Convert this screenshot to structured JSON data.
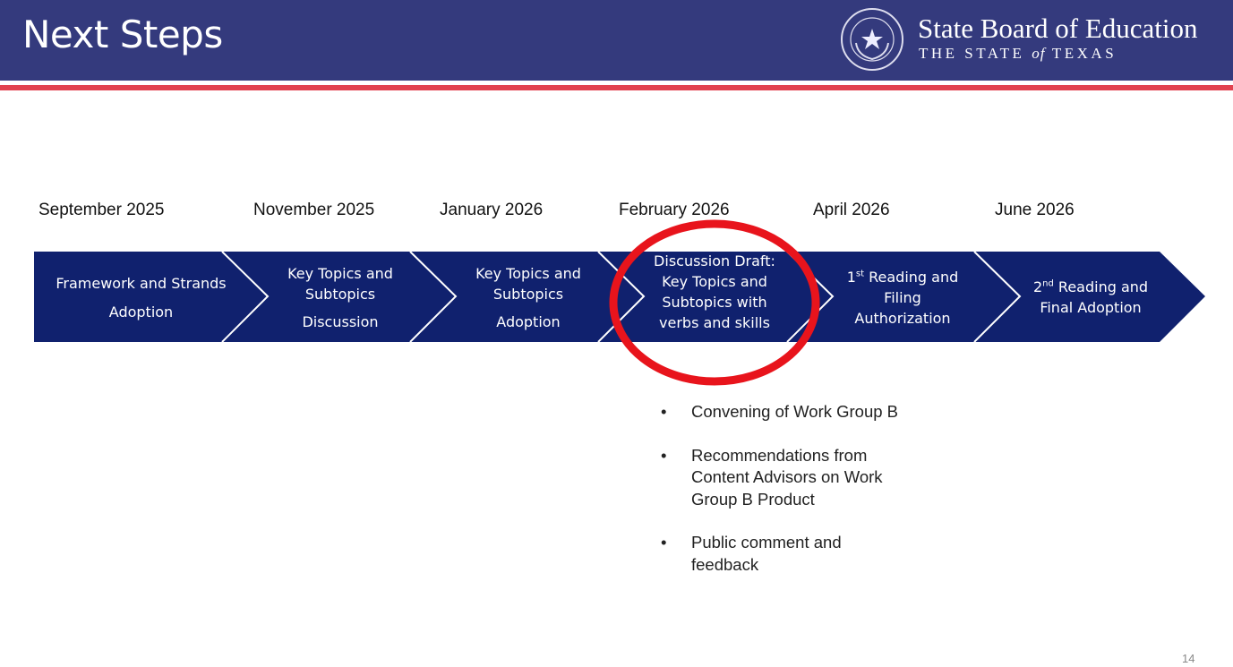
{
  "header": {
    "title": "Next Steps",
    "org_name": "State Board of Education",
    "org_sub_1": "THE STATE",
    "org_sub_of": "of",
    "org_sub_2": "TEXAS",
    "seal_text": "THE STATE OF TEXAS - State Board of Education"
  },
  "colors": {
    "header": "#343a7d",
    "stripe": "#e2424f",
    "band": "#10216e",
    "highlight": "#e8141c"
  },
  "timeline": {
    "dates": [
      "September 2025",
      "November 2025",
      "January 2026",
      "February 2026",
      "April 2026",
      "June 2026"
    ],
    "steps": [
      {
        "lines": [
          "Framework and Strands",
          "Adoption"
        ]
      },
      {
        "lines": [
          "Key Topics and",
          "Subtopics",
          "Discussion"
        ]
      },
      {
        "lines": [
          "Key Topics and",
          "Subtopics",
          "Adoption"
        ]
      },
      {
        "lines": [
          "Discussion Draft:",
          "Key Topics and",
          "Subtopics with",
          "verbs and skills"
        ]
      },
      {
        "sup": "st",
        "lines": [
          "1",
          " Reading and",
          "Filing",
          "Authorization"
        ]
      },
      {
        "sup": "nd",
        "lines": [
          "2",
          " Reading and",
          "Final Adoption"
        ]
      }
    ],
    "highlighted_step": 3
  },
  "bullets": {
    "marker": "•",
    "items": [
      "Convening of Work Group B",
      "Recommendations from Content Advisors on Work Group B Product",
      "Public comment and feedback"
    ]
  },
  "page_number": "14"
}
